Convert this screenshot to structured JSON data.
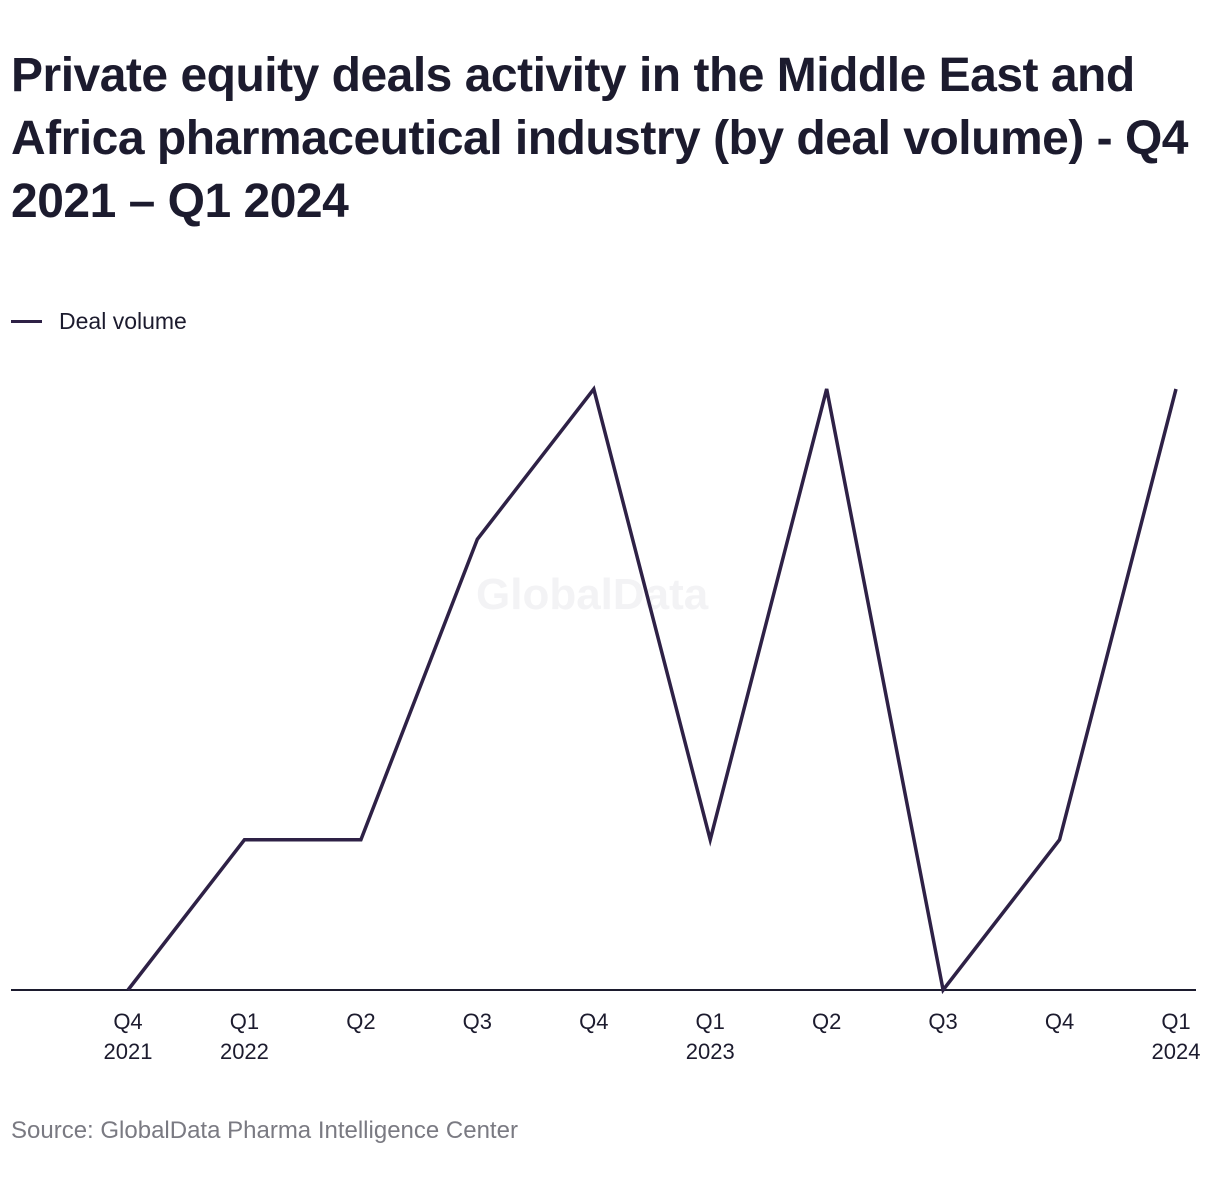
{
  "title": "Private equity deals activity in the Middle East and Africa pharmaceutical industry (by deal volume) - Q4 2021 – Q1 2024",
  "source": "Source: GlobalData Pharma Intelligence Center",
  "watermark": "GlobalData",
  "colors": {
    "line": "#2e2146",
    "axis": "#1c1b2e",
    "text": "#1c1b2e",
    "source": "#7a7a82"
  },
  "chart_data": {
    "type": "line",
    "title": "Private equity deals activity in the Middle East and Africa pharmaceutical industry (by deal volume) - Q4 2021 – Q1 2024",
    "xlabel": "",
    "ylabel": "",
    "categories": [
      [
        "Q4",
        "2021"
      ],
      [
        "Q1",
        "2022"
      ],
      [
        "Q2",
        ""
      ],
      [
        "Q3",
        ""
      ],
      [
        "Q4",
        ""
      ],
      [
        "Q1",
        "2023"
      ],
      [
        "Q2",
        ""
      ],
      [
        "Q3",
        ""
      ],
      [
        "Q4",
        ""
      ],
      [
        "Q1",
        "2024"
      ]
    ],
    "series": [
      {
        "name": "Deal volume",
        "values": [
          0,
          1,
          1,
          3,
          4,
          1,
          4,
          0,
          1,
          4
        ]
      }
    ],
    "ylim": [
      0,
      4
    ],
    "grid": false,
    "y_axis_labels": false,
    "legend": "top-left"
  }
}
